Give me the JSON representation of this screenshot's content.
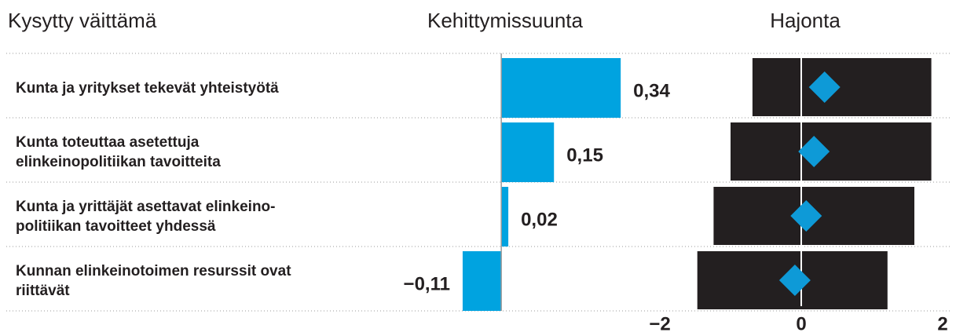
{
  "chart_data": [
    {
      "type": "bar",
      "title": "Kehittymissuunta",
      "categories_title": "Kysytty väittämä",
      "categories": [
        "Kunta ja yritykset tekevät yhteistyötä",
        "Kunta toteuttaa asetettuja elinkeinopolitiikan tavoitteita",
        "Kunta ja yrittäjät asettavat elinkeino­politiikan tavoitteet yhdessä",
        "Kunnan elinkeinotoimen resurssit ovat riittävät"
      ],
      "values": [
        0.34,
        0.15,
        0.02,
        -0.11
      ],
      "value_labels": [
        "0,34",
        "0,15",
        "0,02",
        "−0,11"
      ],
      "color": "#00a3e0",
      "xlim": [
        -0.3,
        0.4
      ]
    },
    {
      "type": "range",
      "title": "Hajonta",
      "low": [
        -0.69,
        -1.0,
        -1.24,
        -1.47
      ],
      "high": [
        1.84,
        1.84,
        1.6,
        1.22
      ],
      "mean": [
        0.33,
        0.18,
        0.07,
        -0.09
      ],
      "color": "#231f20",
      "marker_color": "#0e9ad7",
      "xlim": [
        -2,
        2
      ],
      "xticks": [
        {
          "value": -2,
          "label": "−2"
        },
        0,
        2
      ]
    }
  ]
}
